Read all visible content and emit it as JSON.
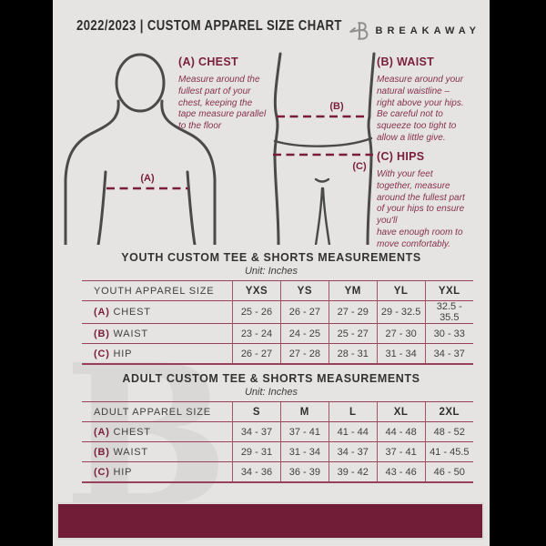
{
  "header": {
    "title": "2022/2023  |  CUSTOM APPAREL SIZE CHART",
    "brand": "BREAKAWAY"
  },
  "figure": {
    "labels": {
      "chest": "(A)",
      "waist": "(B)",
      "hip": "(C)"
    },
    "instructions": [
      {
        "id": "A",
        "heading": "(A) CHEST",
        "text": "Measure around the\nfullest part of your\nchest, keeping the\ntape measure parallel\nto the floor"
      },
      {
        "id": "B",
        "heading": "(B) WAIST",
        "text": "Measure around your\nnatural waistline –\nright above your hips.\nBe careful not to\nsqueeze too tight to\nallow a little give."
      },
      {
        "id": "C",
        "heading": "(C) HIPS",
        "text": "With your feet\ntogether, measure\naround the fullest part\nof your hips to ensure\nyou'll\nhave enough room to\nmove comfortably."
      }
    ]
  },
  "youth": {
    "title": "YOUTH CUSTOM TEE & SHORTS MEASUREMENTS",
    "unit": "Unit: Inches",
    "header": [
      "YOUTH APPAREL SIZE",
      "YXS",
      "YS",
      "YM",
      "YL",
      "YXL"
    ],
    "rows": [
      {
        "prefix": "(A)",
        "label": "CHEST",
        "values": [
          "25 - 26",
          "26 - 27",
          "27 - 29",
          "29 - 32.5",
          "32.5 - 35.5"
        ]
      },
      {
        "prefix": "(B)",
        "label": "WAIST",
        "values": [
          "23 - 24",
          "24 - 25",
          "25 - 27",
          "27 - 30",
          "30 - 33"
        ]
      },
      {
        "prefix": "(C)",
        "label": "HIP",
        "values": [
          "26 - 27",
          "27 - 28",
          "28 - 31",
          "31 - 34",
          "34 - 37"
        ]
      }
    ]
  },
  "adult": {
    "title": "ADULT CUSTOM TEE & SHORTS MEASUREMENTS",
    "unit": "Unit: Inches",
    "header": [
      "ADULT APPAREL SIZE",
      "S",
      "M",
      "L",
      "XL",
      "2XL"
    ],
    "rows": [
      {
        "prefix": "(A)",
        "label": "CHEST",
        "values": [
          "34 - 37",
          "37 - 41",
          "41 - 44",
          "44 - 48",
          "48 - 52"
        ]
      },
      {
        "prefix": "(B)",
        "label": "WAIST",
        "values": [
          "29 - 31",
          "31 - 34",
          "34 - 37",
          "37 - 41",
          "41 - 45.5"
        ]
      },
      {
        "prefix": "(C)",
        "label": "HIP",
        "values": [
          "34 - 36",
          "36 - 39",
          "39 - 42",
          "43 - 46",
          "46 - 50"
        ]
      }
    ]
  },
  "watermark_glyph": "B",
  "colors": {
    "background": "#e5e4e2",
    "page_edges": "#000000",
    "maroon_accent": "#721d37",
    "maroon_text": "#7a1e3c",
    "table_line": "#a05668",
    "dark_text": "#333333",
    "body_outline": "#4a4a4a",
    "logo_gray": "#8f8f8f"
  }
}
